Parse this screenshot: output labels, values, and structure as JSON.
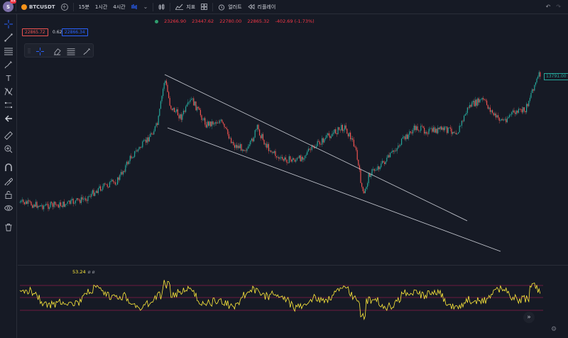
{
  "user": {
    "avatar_letter": "S",
    "notification_count": "11"
  },
  "toolbar": {
    "symbol": "BTCUSDT",
    "intervals": [
      "15분",
      "1시간",
      "4시간"
    ],
    "indicators_label": "지표",
    "alert_label": "얼러트",
    "replay_label": "리플레이"
  },
  "price_tags": {
    "bid": "22865.72",
    "spread": "0.62",
    "ask": "22866.34"
  },
  "ohlc": {
    "open": "23266.90",
    "high": "23447.62",
    "low": "22780.00",
    "close": "22865.32",
    "change": "-402.69 (-1.73%)"
  },
  "last_price": "13791.00",
  "rsi": {
    "value": "53.24",
    "extra": "ø ø"
  },
  "colors": {
    "background": "#161a25",
    "up_candle": "#26a69a",
    "down_candle": "#ef5350",
    "rsi_line": "#ffeb3b",
    "band_line": "#c2185b",
    "trend_line": "#c8cbd3"
  },
  "icons": {
    "left_toolbar": [
      "crosshair-icon",
      "trendline-icon",
      "horizontal-lines-icon",
      "brush-icon",
      "text-icon",
      "pattern-icon",
      "prediction-icon",
      "arrow-left-icon",
      "ruler-icon",
      "zoom-in-icon",
      "magnet-icon",
      "lock-drawing-icon",
      "lock-icon",
      "eye-icon",
      "trash-icon"
    ]
  }
}
